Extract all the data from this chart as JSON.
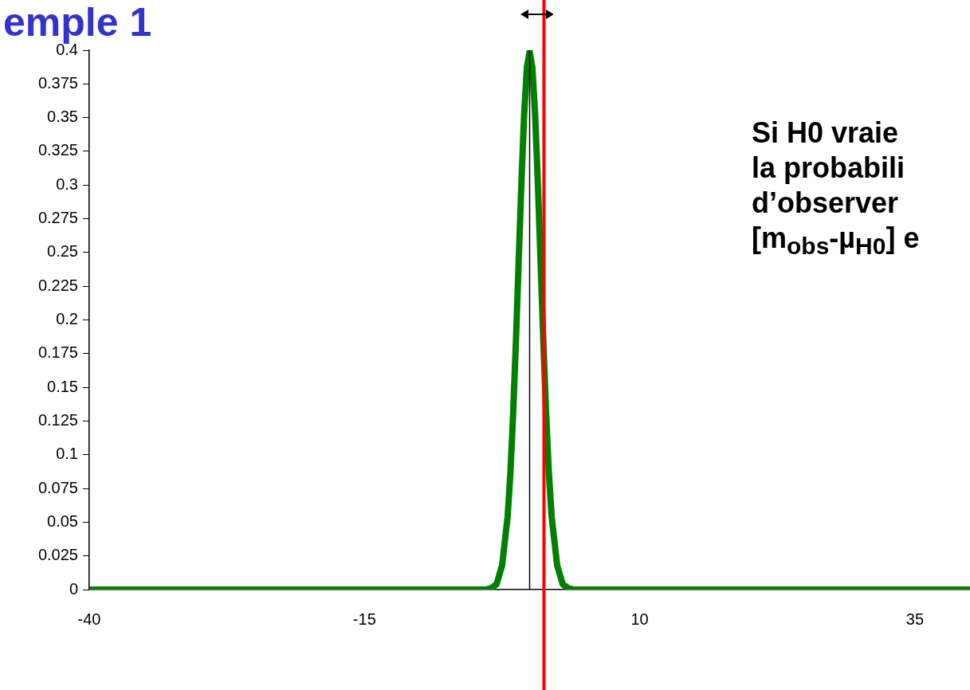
{
  "chart_data": {
    "type": "line",
    "title": "emple 1",
    "annotations": [
      "Si H0 vraie",
      "la probabili",
      "d’observer",
      "[m$_{obs}$-µ$_{H0}$] e"
    ],
    "series": [
      {
        "color": "#008000",
        "x": [
          -40,
          -20,
          -10,
          -5,
          -4,
          -3.5,
          -3,
          -2.5,
          -2,
          -1.75,
          -1.5,
          -1.25,
          -1,
          -0.75,
          -0.5,
          -0.25,
          0,
          0.25,
          0.5,
          0.75,
          1,
          1.25,
          1.5,
          1.75,
          2,
          2.5,
          3,
          3.5,
          4,
          5,
          10,
          20,
          40
        ],
        "values": [
          0,
          0,
          0,
          0,
          0,
          0.001,
          0.004,
          0.018,
          0.054,
          0.086,
          0.13,
          0.183,
          0.242,
          0.301,
          0.352,
          0.387,
          0.399,
          0.387,
          0.352,
          0.301,
          0.242,
          0.183,
          0.13,
          0.086,
          0.054,
          0.018,
          0.004,
          0.001,
          0,
          0,
          0,
          0,
          0
        ]
      }
    ],
    "xlim": [
      -40,
      40
    ],
    "xticks": [
      -40,
      -15,
      10,
      35
    ],
    "ylim": [
      0,
      0.4
    ],
    "yticks": [
      0,
      0.025,
      0.05,
      0.075,
      0.1,
      0.125,
      0.15,
      0.175,
      0.2,
      0.225,
      0.25,
      0.275,
      0.3,
      0.325,
      0.35,
      0.375,
      0.4
    ],
    "ref_lines": [
      {
        "axis": "x",
        "value": 0,
        "color": "#000000"
      },
      {
        "axis": "x",
        "value": 1.3,
        "color": "#ff0000"
      }
    ],
    "grid": false,
    "legend": false,
    "marker": "none",
    "line_style": "solid"
  }
}
